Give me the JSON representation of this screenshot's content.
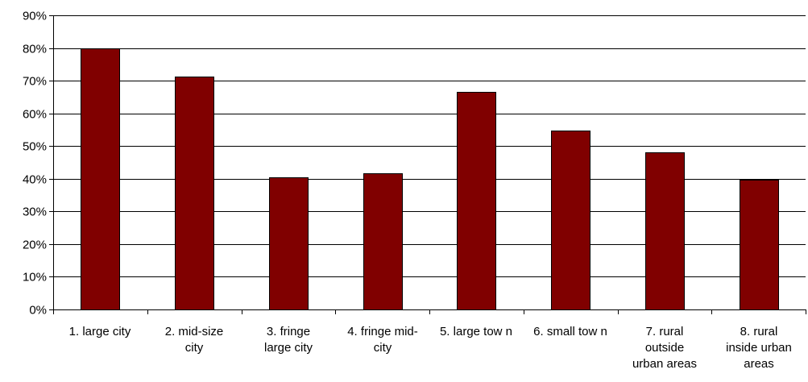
{
  "chart_data": {
    "type": "bar",
    "categories": [
      "1. large city",
      "2. mid-size city",
      "3. fringe large city",
      "4. fringe mid-city",
      "5. large tow n",
      "6. small tow n",
      "7. rural outside urban areas",
      "8. rural inside urban areas"
    ],
    "category_lines": [
      "1. large city",
      "2. mid-size\ncity",
      "3. fringe\nlarge city",
      "4. fringe mid-\ncity",
      "5. large tow n",
      "6. small tow n",
      "7. rural\noutside\nurban areas",
      "8. rural\ninside urban\nareas"
    ],
    "values": [
      80,
      71.2,
      40.4,
      41.7,
      66.5,
      54.8,
      48.1,
      39.6
    ],
    "ylim": [
      0,
      90
    ],
    "yticks": [
      "0%",
      "10%",
      "20%",
      "30%",
      "40%",
      "50%",
      "60%",
      "70%",
      "80%",
      "90%"
    ],
    "grid": true,
    "bar_color": "#800000",
    "title": "",
    "xlabel": "",
    "ylabel": ""
  }
}
